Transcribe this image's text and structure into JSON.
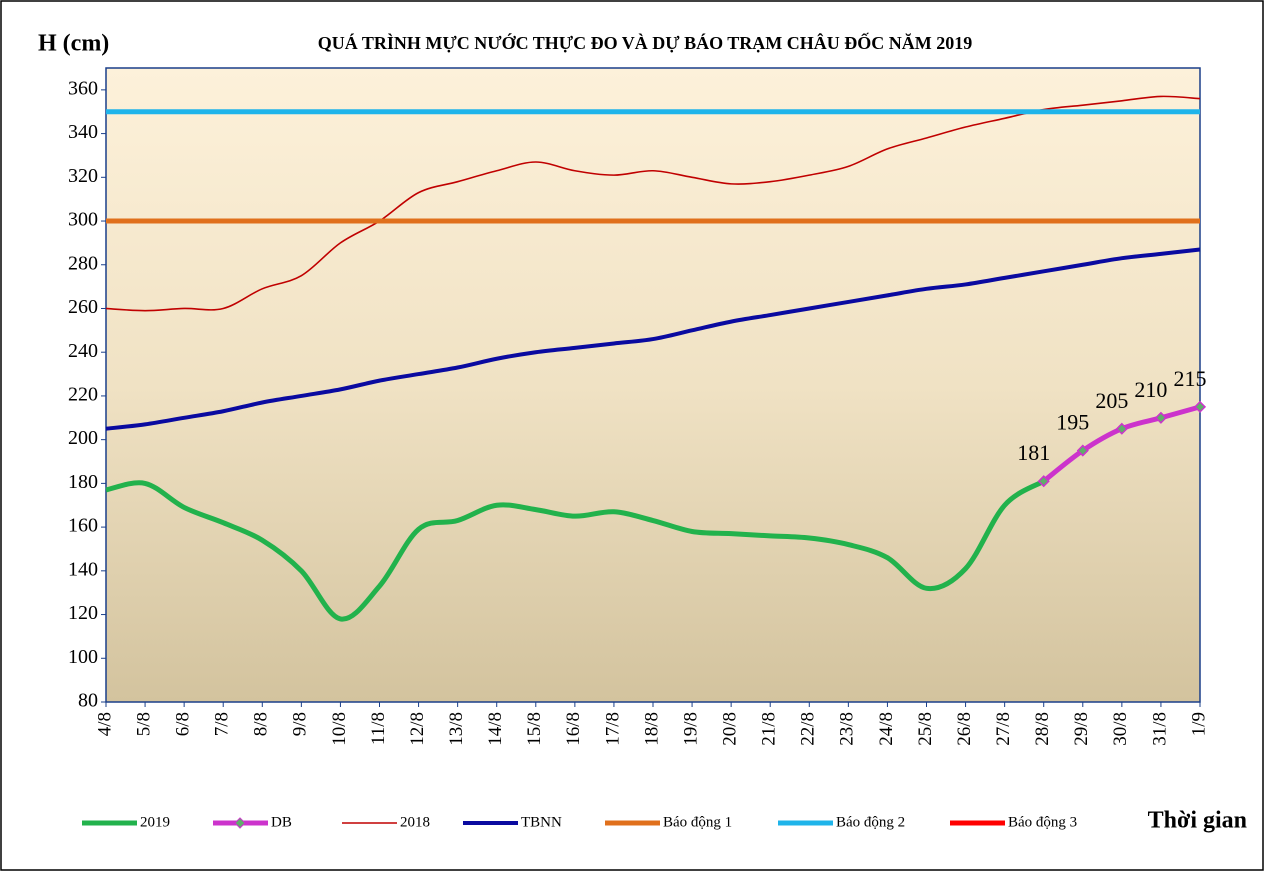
{
  "chart_data": {
    "type": "line",
    "title": "QUÁ TRÌNH MỰC NƯỚC THỰC ĐO VÀ DỰ BÁO TRẠM CHÂU ĐỐC NĂM  2019",
    "y_label": "H (cm)",
    "x_label": "Thời gian",
    "categories": [
      "4/8",
      "5/8",
      "6/8",
      "7/8",
      "8/8",
      "9/8",
      "10/8",
      "11/8",
      "12/8",
      "13/8",
      "14/8",
      "15/8",
      "16/8",
      "17/8",
      "18/8",
      "19/8",
      "20/8",
      "21/8",
      "22/8",
      "23/8",
      "24/8",
      "25/8",
      "26/8",
      "27/8",
      "28/8",
      "29/8",
      "30/8",
      "31/8",
      "1/9"
    ],
    "ylim": [
      80,
      370
    ],
    "yticks": [
      80,
      100,
      120,
      140,
      160,
      180,
      200,
      220,
      240,
      260,
      280,
      300,
      320,
      340,
      360
    ],
    "series": [
      {
        "name": "2019",
        "color": "#22b24c",
        "width": 5,
        "values": [
          177,
          180,
          169,
          162,
          154,
          140,
          118,
          133,
          159,
          163,
          170,
          168,
          165,
          167,
          163,
          158,
          157,
          156,
          155,
          152,
          146,
          132,
          141,
          170,
          181,
          null,
          null,
          null,
          null
        ]
      },
      {
        "name": "DB",
        "color": "#cc33cc",
        "width": 5,
        "markers": true,
        "data_labels": true,
        "values": [
          null,
          null,
          null,
          null,
          null,
          null,
          null,
          null,
          null,
          null,
          null,
          null,
          null,
          null,
          null,
          null,
          null,
          null,
          null,
          null,
          null,
          null,
          null,
          null,
          181,
          195,
          205,
          210,
          215
        ]
      },
      {
        "name": "2018",
        "color": "#c00000",
        "width": 1.6,
        "values": [
          260,
          259,
          260,
          260,
          269,
          275,
          290,
          300,
          313,
          318,
          323,
          327,
          323,
          321,
          323,
          320,
          317,
          318,
          321,
          325,
          333,
          338,
          343,
          347,
          351,
          353,
          355,
          357,
          356
        ]
      },
      {
        "name": "TBNN",
        "color": "#0a0aa0",
        "width": 4,
        "values": [
          205,
          207,
          210,
          213,
          217,
          220,
          223,
          227,
          230,
          233,
          237,
          240,
          242,
          244,
          246,
          250,
          254,
          257,
          260,
          263,
          266,
          269,
          271,
          274,
          277,
          280,
          283,
          285,
          287
        ]
      },
      {
        "name": "Báo động 1",
        "color": "#e0701c",
        "width": 5,
        "values": [
          300,
          300,
          300,
          300,
          300,
          300,
          300,
          300,
          300,
          300,
          300,
          300,
          300,
          300,
          300,
          300,
          300,
          300,
          300,
          300,
          300,
          300,
          300,
          300,
          300,
          300,
          300,
          300,
          300
        ]
      },
      {
        "name": "Báo động 2",
        "color": "#1fb4ea",
        "width": 5,
        "values": [
          350,
          350,
          350,
          350,
          350,
          350,
          350,
          350,
          350,
          350,
          350,
          350,
          350,
          350,
          350,
          350,
          350,
          350,
          350,
          350,
          350,
          350,
          350,
          350,
          350,
          350,
          350,
          350,
          350
        ]
      },
      {
        "name": "Báo động 3",
        "color": "#ff0000",
        "width": 5,
        "values": [
          null,
          null,
          null,
          null,
          null,
          null,
          null,
          null,
          null,
          null,
          null,
          null,
          null,
          null,
          null,
          null,
          null,
          null,
          null,
          null,
          null,
          null,
          null,
          null,
          null,
          null,
          null,
          null,
          null
        ]
      }
    ]
  }
}
